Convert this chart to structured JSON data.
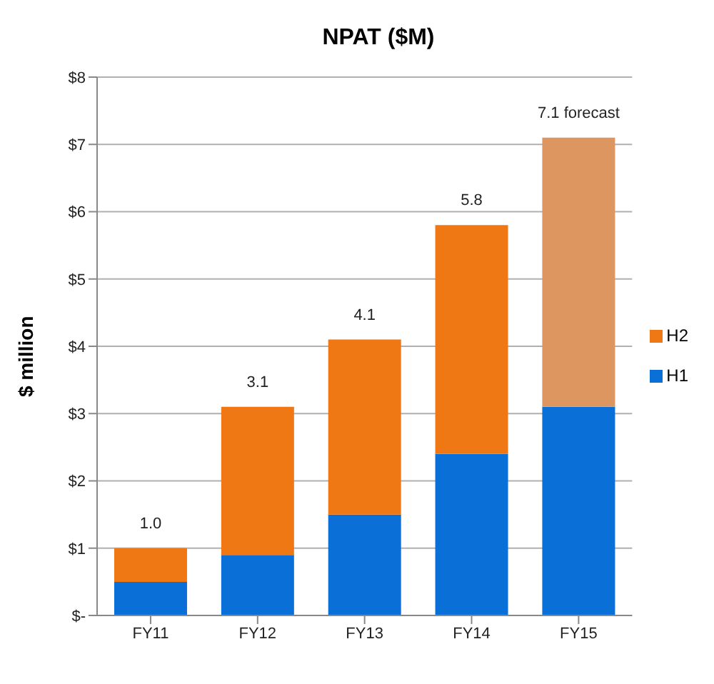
{
  "chart_data": {
    "type": "bar",
    "title": "NPAT ($M)",
    "ylabel": "$ million",
    "stacked": true,
    "categories": [
      "FY11",
      "FY12",
      "FY13",
      "FY14",
      "FY15"
    ],
    "series": [
      {
        "name": "H1",
        "color": "#0a70d8",
        "values": [
          0.5,
          0.9,
          1.5,
          2.4,
          3.1
        ]
      },
      {
        "name": "H2",
        "color": "#f07814",
        "colors": [
          "#f07814",
          "#f07814",
          "#f07814",
          "#f07814",
          "#de9660"
        ],
        "values": [
          0.5,
          2.2,
          2.6,
          3.4,
          4.0
        ]
      }
    ],
    "ylim": [
      0,
      8
    ],
    "yticks": [
      {
        "value": 0,
        "label": "$-"
      },
      {
        "value": 1,
        "label": "$1"
      },
      {
        "value": 2,
        "label": "$2"
      },
      {
        "value": 3,
        "label": "$3"
      },
      {
        "value": 4,
        "label": "$4"
      },
      {
        "value": 5,
        "label": "$5"
      },
      {
        "value": 6,
        "label": "$6"
      },
      {
        "value": 7,
        "label": "$7"
      },
      {
        "value": 8,
        "label": "$8"
      }
    ],
    "grid": "y",
    "legend": "right",
    "totals": [
      "1.0",
      "3.1",
      "4.1",
      "5.8",
      "7.1 forecast"
    ]
  }
}
